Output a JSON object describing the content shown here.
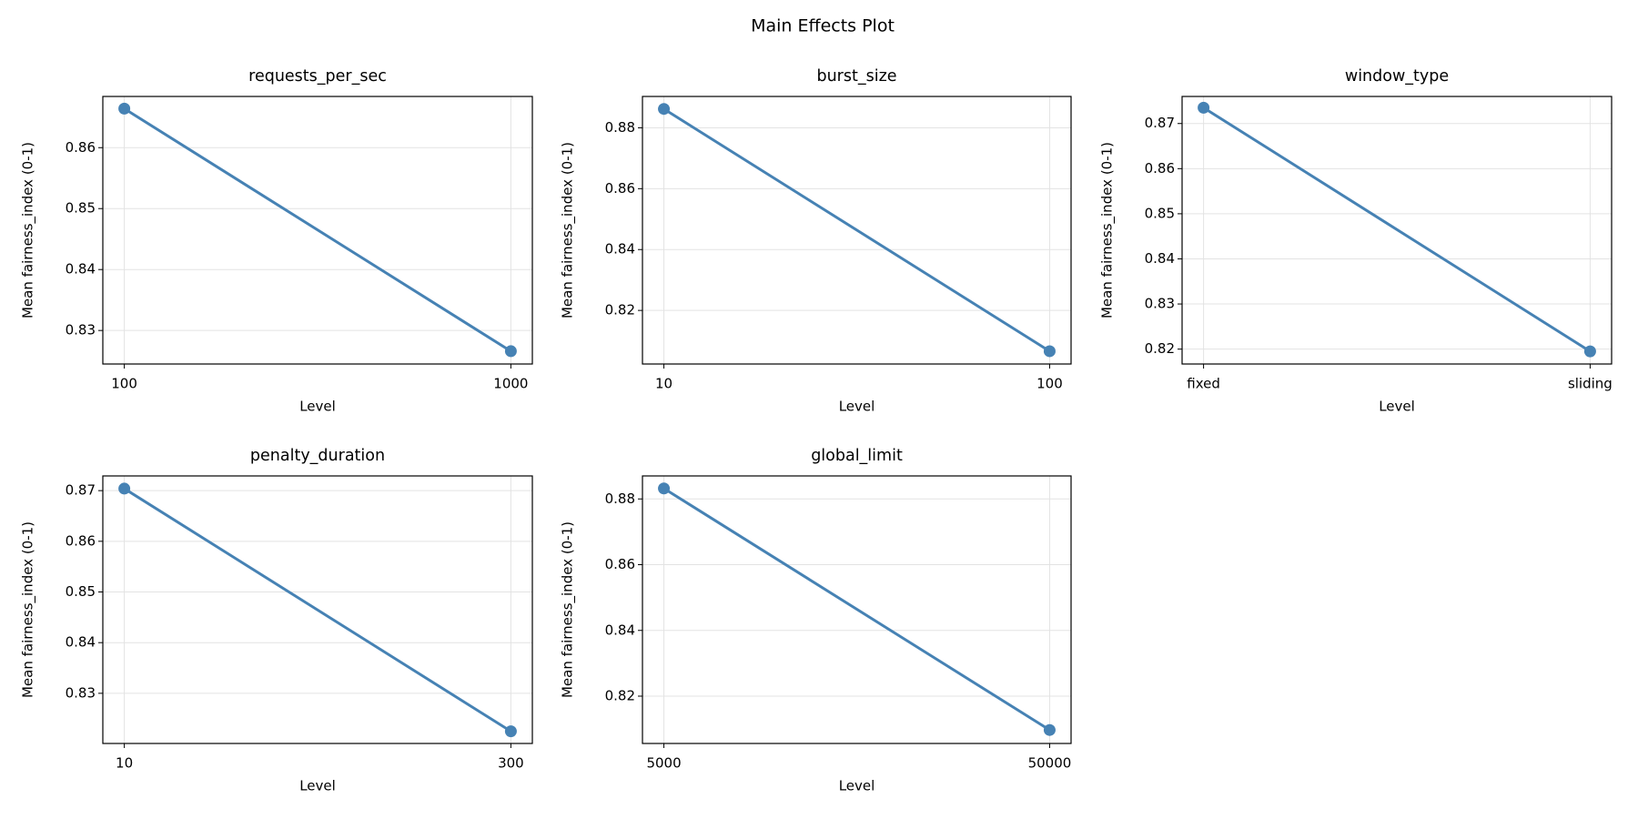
{
  "title": "Main Effects Plot",
  "chart_data": [
    {
      "type": "line",
      "title": "requests_per_sec",
      "xlabel": "Level",
      "ylabel": "Mean fairness_index (0-1)",
      "categories": [
        "100",
        "1000"
      ],
      "values": [
        0.8664,
        0.8266
      ],
      "color": "#4682b4",
      "ylim": [
        0.8245,
        0.8684
      ],
      "yticks": [
        0.83,
        0.84,
        0.85,
        0.86
      ],
      "grid": true
    },
    {
      "type": "line",
      "title": "burst_size",
      "xlabel": "Level",
      "ylabel": "Mean fairness_index (0-1)",
      "categories": [
        "10",
        "100"
      ],
      "values": [
        0.8862,
        0.8066
      ],
      "color": "#4682b4",
      "ylim": [
        0.8024,
        0.8903
      ],
      "yticks": [
        0.82,
        0.84,
        0.86,
        0.88
      ],
      "grid": true
    },
    {
      "type": "line",
      "title": "window_type",
      "xlabel": "Level",
      "ylabel": "Mean fairness_index (0-1)",
      "categories": [
        "fixed",
        "sliding"
      ],
      "values": [
        0.8735,
        0.8195
      ],
      "color": "#4682b4",
      "ylim": [
        0.8167,
        0.876
      ],
      "yticks": [
        0.82,
        0.83,
        0.84,
        0.85,
        0.86,
        0.87
      ],
      "grid": true
    },
    {
      "type": "line",
      "title": "penalty_duration",
      "xlabel": "Level",
      "ylabel": "Mean fairness_index (0-1)",
      "categories": [
        "10",
        "300"
      ],
      "values": [
        0.8704,
        0.8225
      ],
      "color": "#4682b4",
      "ylim": [
        0.8201,
        0.8729
      ],
      "yticks": [
        0.83,
        0.84,
        0.85,
        0.86,
        0.87
      ],
      "grid": true
    },
    {
      "type": "line",
      "title": "global_limit",
      "xlabel": "Level",
      "ylabel": "Mean fairness_index (0-1)",
      "categories": [
        "5000",
        "50000"
      ],
      "values": [
        0.8832,
        0.8097
      ],
      "color": "#4682b4",
      "ylim": [
        0.8056,
        0.887
      ],
      "yticks": [
        0.82,
        0.84,
        0.86,
        0.88
      ],
      "grid": true
    }
  ]
}
